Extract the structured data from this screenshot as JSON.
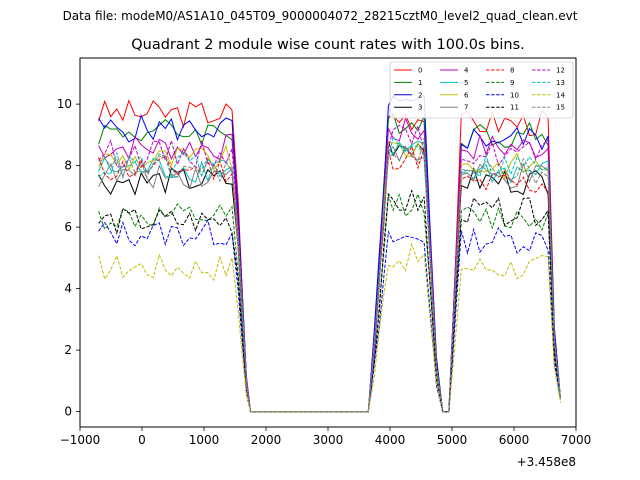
{
  "figure": {
    "suptitle": "Data file: modeM0/AS1A10_045T09_9000004072_28215cztM0_level2_quad_clean.evt"
  },
  "chart_data": {
    "type": "line",
    "title": "Quadrant 2 module wise count rates with 100.0s bins.",
    "xlabel": "",
    "ylabel": "",
    "x_offset_label": "+3.458e8",
    "xlim": [
      -1000,
      7000
    ],
    "ylim": [
      -0.5,
      11.5
    ],
    "xticks": [
      -1000,
      0,
      1000,
      2000,
      3000,
      4000,
      5000,
      6000,
      7000
    ],
    "xtick_labels": [
      "−1000",
      "0",
      "1000",
      "2000",
      "3000",
      "4000",
      "5000",
      "6000",
      "7000"
    ],
    "yticks": [
      0,
      2,
      4,
      6,
      8,
      10
    ],
    "ytick_labels": [
      "0",
      "2",
      "4",
      "6",
      "8",
      "10"
    ],
    "grid": false,
    "legend_placement": "top-right",
    "legend_columns": 4,
    "segments": [
      {
        "start": -700,
        "end": 1550,
        "bins": 23,
        "shape": "flat"
      },
      {
        "start": 1550,
        "end": 1750,
        "bins": 3,
        "shape": "fall"
      },
      {
        "start": 1750,
        "end": 3750,
        "bins": 20,
        "shape": "zero"
      },
      {
        "start": 3750,
        "end": 4050,
        "bins": 4,
        "shape": "rise"
      },
      {
        "start": 4050,
        "end": 4650,
        "bins": 6,
        "shape": "flat"
      },
      {
        "start": 4650,
        "end": 4850,
        "bins": 2,
        "shape": "fall"
      },
      {
        "start": 4850,
        "end": 5050,
        "bins": 2,
        "shape": "zero"
      },
      {
        "start": 5050,
        "end": 5250,
        "bins": 2,
        "shape": "rise"
      },
      {
        "start": 5250,
        "end": 6650,
        "bins": 14,
        "shape": "flat"
      },
      {
        "start": 6650,
        "end": 6750,
        "bins": 1,
        "shape": "fall"
      }
    ],
    "series": [
      {
        "name": "0",
        "color": "#ff0000",
        "dash": "solid",
        "level": 9.7,
        "level2": 9.6,
        "level3": 9.4,
        "end": 0.4
      },
      {
        "name": "1",
        "color": "#008000",
        "dash": "solid",
        "level": 9.1,
        "level2": 9.5,
        "level3": 9.0,
        "end": 0.4
      },
      {
        "name": "2",
        "color": "#0000ff",
        "dash": "solid",
        "level": 9.2,
        "level2": 9.9,
        "level3": 8.9,
        "end": 0.4
      },
      {
        "name": "3",
        "color": "#000000",
        "dash": "solid",
        "level": 7.5,
        "level2": 8.7,
        "level3": 7.5,
        "end": 0.4
      },
      {
        "name": "4",
        "color": "#bf00bf",
        "dash": "solid",
        "level": 8.6,
        "level2": 9.1,
        "level3": 8.6,
        "end": 0.4
      },
      {
        "name": "5",
        "color": "#00bfbf",
        "dash": "solid",
        "level": 7.9,
        "level2": 8.4,
        "level3": 7.8,
        "end": 0.4
      },
      {
        "name": "6",
        "color": "#bfbf00",
        "dash": "solid",
        "level": 8.2,
        "level2": 8.6,
        "level3": 8.0,
        "end": 0.4
      },
      {
        "name": "7",
        "color": "#808080",
        "dash": "solid",
        "level": 7.7,
        "level2": 8.3,
        "level3": 7.6,
        "end": 0.4
      },
      {
        "name": "8",
        "color": "#ff0000",
        "dash": "dashed",
        "level": 7.9,
        "level2": 8.3,
        "level3": 7.4,
        "end": 0.4
      },
      {
        "name": "9",
        "color": "#008000",
        "dash": "dashed",
        "level": 6.3,
        "level2": 6.8,
        "level3": 6.3,
        "end": 0.4
      },
      {
        "name": "10",
        "color": "#0000ff",
        "dash": "dashed",
        "level": 5.8,
        "level2": 5.6,
        "level3": 5.6,
        "end": 0.4
      },
      {
        "name": "11",
        "color": "#000000",
        "dash": "dashed",
        "level": 6.2,
        "level2": 6.8,
        "level3": 6.5,
        "end": 0.4
      },
      {
        "name": "12",
        "color": "#bf00bf",
        "dash": "dashed",
        "level": 8.4,
        "level2": 8.9,
        "level3": 8.4,
        "end": 0.4
      },
      {
        "name": "13",
        "color": "#00bfbf",
        "dash": "dashed",
        "level": 8.0,
        "level2": 8.5,
        "level3": 8.0,
        "end": 0.4
      },
      {
        "name": "14",
        "color": "#bfbf00",
        "dash": "dashed",
        "level": 4.7,
        "level2": 5.0,
        "level3": 4.7,
        "end": 0.3
      },
      {
        "name": "15",
        "color": "#808080",
        "dash": "dashed",
        "level": 7.9,
        "level2": 8.5,
        "level3": 7.8,
        "end": 0.4
      }
    ]
  }
}
